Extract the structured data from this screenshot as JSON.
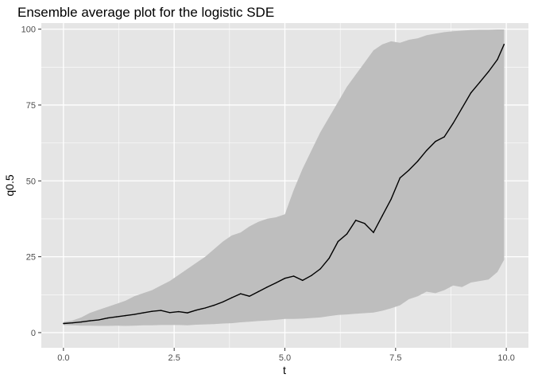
{
  "chart_data": {
    "type": "line",
    "title": "Ensemble average plot for the logistic SDE",
    "xlabel": "t",
    "ylabel": "q0.5",
    "xlim": [
      -0.5,
      10.5
    ],
    "ylim": [
      -5,
      102
    ],
    "x_ticks": [
      0,
      2.5,
      5,
      7.5,
      10
    ],
    "x_tick_labels": [
      "0.0",
      "2.5",
      "5.0",
      "7.5",
      "10.0"
    ],
    "y_ticks": [
      0,
      25,
      50,
      75,
      100
    ],
    "y_tick_labels": [
      "0",
      "25",
      "50",
      "75",
      "100"
    ],
    "grid": true,
    "legend": "none",
    "colors": {
      "panel": "#e5e5e5",
      "grid": "#ffffff",
      "ribbon": "#bebebe",
      "line": "#000000"
    },
    "series": [
      {
        "x": [
          0,
          0.2,
          0.4,
          0.6,
          0.8,
          1.0,
          1.2,
          1.4,
          1.6,
          1.8,
          2.0,
          2.2,
          2.4,
          2.6,
          2.8,
          3.0,
          3.2,
          3.4,
          3.6,
          3.8,
          4.0,
          4.2,
          4.4,
          4.6,
          4.8,
          5.0,
          5.2,
          5.4,
          5.6,
          5.8,
          6.0,
          6.2,
          6.4,
          6.6,
          6.8,
          7.0,
          7.2,
          7.4,
          7.6,
          7.8,
          8.0,
          8.2,
          8.4,
          8.6,
          8.8,
          9.0,
          9.2,
          9.4,
          9.6,
          9.8,
          9.95
        ],
        "values": [
          3.0,
          3.2,
          3.5,
          3.9,
          4.2,
          4.8,
          5.2,
          5.6,
          6.0,
          6.5,
          7.0,
          7.3,
          6.6,
          6.9,
          6.5,
          7.4,
          8.1,
          9.0,
          10.1,
          11.5,
          12.8,
          12.0,
          13.5,
          15.0,
          16.4,
          17.9,
          18.6,
          17.2,
          18.8,
          21.0,
          24.5,
          30.0,
          32.5,
          37.0,
          36.0,
          33.0,
          38.5,
          44.0,
          51.0,
          53.5,
          56.5,
          60.0,
          63.0,
          64.5,
          69.0,
          74.0,
          79.0,
          82.5,
          86.0,
          90.0,
          95.0
        ]
      }
    ],
    "ribbon": {
      "x": [
        0,
        0.2,
        0.4,
        0.6,
        0.8,
        1.0,
        1.2,
        1.4,
        1.6,
        1.8,
        2.0,
        2.2,
        2.4,
        2.6,
        2.8,
        3.0,
        3.2,
        3.4,
        3.6,
        3.8,
        4.0,
        4.2,
        4.4,
        4.6,
        4.8,
        5.0,
        5.2,
        5.4,
        5.6,
        5.8,
        6.0,
        6.2,
        6.4,
        6.6,
        6.8,
        7.0,
        7.2,
        7.4,
        7.6,
        7.8,
        8.0,
        8.2,
        8.4,
        8.6,
        8.8,
        9.0,
        9.2,
        9.4,
        9.6,
        9.8,
        9.95
      ],
      "lower": [
        2.5,
        2.4,
        2.3,
        2.3,
        2.2,
        2.2,
        2.3,
        2.2,
        2.3,
        2.4,
        2.4,
        2.5,
        2.5,
        2.5,
        2.4,
        2.6,
        2.7,
        2.8,
        3.0,
        3.1,
        3.4,
        3.6,
        3.8,
        4.0,
        4.2,
        4.5,
        4.5,
        4.6,
        4.8,
        5.0,
        5.4,
        5.8,
        6.0,
        6.2,
        6.4,
        6.6,
        7.2,
        8.0,
        9.0,
        11.0,
        12.0,
        13.5,
        13.0,
        14.0,
        15.5,
        15.0,
        16.5,
        17.0,
        17.5,
        20.0,
        24.0
      ],
      "upper": [
        3.5,
        4.0,
        5.0,
        6.5,
        7.5,
        8.5,
        9.5,
        10.5,
        12.0,
        13.0,
        14.0,
        15.5,
        17.0,
        19.0,
        21.0,
        23.0,
        25.0,
        27.5,
        30.0,
        32.0,
        33.0,
        35.0,
        36.5,
        37.5,
        38.0,
        39.0,
        47.0,
        54.0,
        60.0,
        66.0,
        71.0,
        76.0,
        81.0,
        85.0,
        89.0,
        93.0,
        95.0,
        96.0,
        95.5,
        96.5,
        97.0,
        98.0,
        98.5,
        99.0,
        99.3,
        99.5,
        99.7,
        99.8,
        99.8,
        99.9,
        99.9
      ]
    }
  }
}
